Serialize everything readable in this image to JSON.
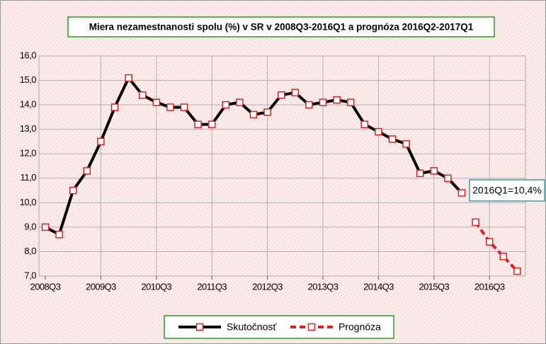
{
  "chart_data": {
    "type": "line",
    "title": "Miera nezamestnanosti spolu (%) v SR v 2008Q3-2016Q1 a prognóza 2016Q2-2017Q1",
    "categories": [
      "2008Q3",
      null,
      null,
      null,
      "2009Q3",
      null,
      null,
      null,
      "2010Q3",
      null,
      null,
      null,
      "2011Q3",
      null,
      null,
      null,
      "2012Q3",
      null,
      null,
      null,
      "2013Q3",
      null,
      null,
      null,
      "2014Q3",
      null,
      null,
      null,
      "2015Q3",
      null,
      null,
      null,
      "2016Q3",
      null,
      null
    ],
    "series": [
      {
        "name": "Skutočnosť",
        "color": "#000000",
        "marker_color": "#e02020",
        "dashed": false,
        "values": [
          9.0,
          8.7,
          10.5,
          11.3,
          12.5,
          13.9,
          15.1,
          14.4,
          14.1,
          13.9,
          13.9,
          13.2,
          13.2,
          14.0,
          14.1,
          13.6,
          13.7,
          14.4,
          14.5,
          14.0,
          14.1,
          14.2,
          14.1,
          13.2,
          12.9,
          12.6,
          12.4,
          11.2,
          11.3,
          11.0,
          10.4,
          null,
          null,
          null,
          null
        ]
      },
      {
        "name": "Prognóza",
        "color": "#e02020",
        "marker_color": "#e02020",
        "dashed": true,
        "values": [
          null,
          null,
          null,
          null,
          null,
          null,
          null,
          null,
          null,
          null,
          null,
          null,
          null,
          null,
          null,
          null,
          null,
          null,
          null,
          null,
          null,
          null,
          null,
          null,
          null,
          null,
          null,
          null,
          null,
          null,
          null,
          9.2,
          8.4,
          7.8,
          7.2
        ]
      }
    ],
    "ylim": [
      7,
      16
    ],
    "yticks": [
      {
        "value": 7,
        "label": "7,0"
      },
      {
        "value": 8,
        "label": "8,0"
      },
      {
        "value": 9,
        "label": "9,0"
      },
      {
        "value": 10,
        "label": "10,0"
      },
      {
        "value": 11,
        "label": "11,0"
      },
      {
        "value": 12,
        "label": "12,0"
      },
      {
        "value": 13,
        "label": "13,0"
      },
      {
        "value": 14,
        "label": "14,0"
      },
      {
        "value": 15,
        "label": "15,0"
      },
      {
        "value": 16,
        "label": "16,0"
      }
    ],
    "grid": true,
    "annotation": "2016Q1=10,4%"
  }
}
